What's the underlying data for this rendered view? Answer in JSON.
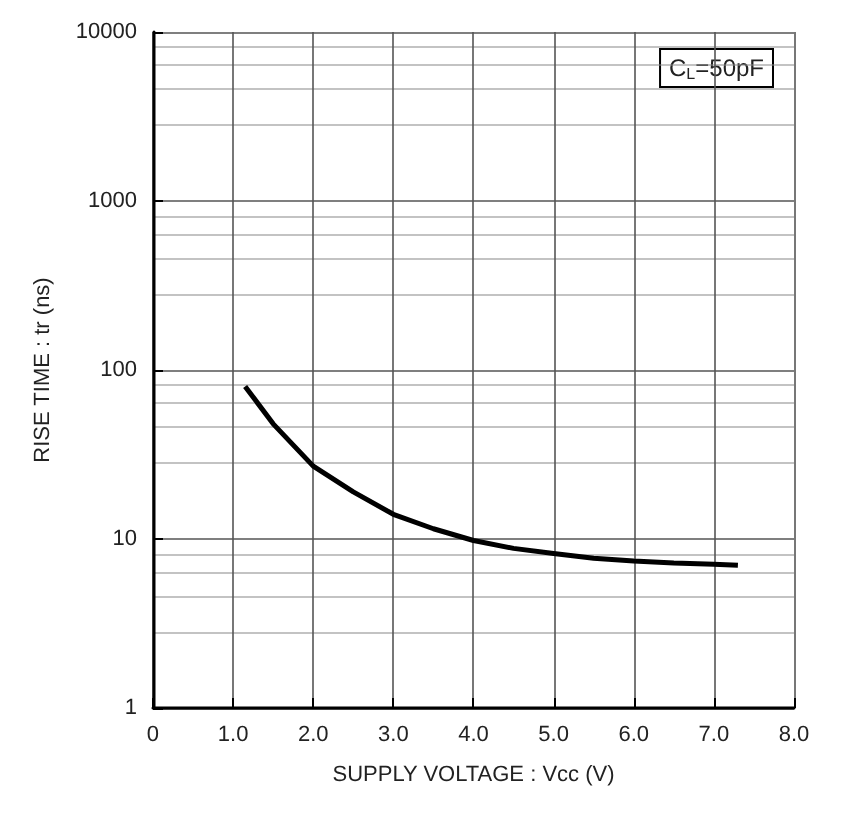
{
  "chart_data": {
    "type": "line",
    "xlabel": "SUPPLY VOLTAGE : Vcc (V)",
    "ylabel": "RISE TIME : tr (ns)",
    "annotations": [
      "C$_{L}$=50pF"
    ],
    "x": [
      1.15,
      1.5,
      2.0,
      2.5,
      3.0,
      3.5,
      4.0,
      4.5,
      5.0,
      5.5,
      6.0,
      6.5,
      7.0,
      7.3
    ],
    "series": [
      {
        "color": "#000000",
        "values": [
          80,
          48,
          27,
          19,
          14,
          11.5,
          9.8,
          8.8,
          8.2,
          7.7,
          7.4,
          7.2,
          7.1,
          7.0
        ]
      }
    ],
    "xlim": [
      0,
      8
    ],
    "xticks": [
      0,
      {
        "value": 1,
        "label": "1.0"
      },
      {
        "value": 2,
        "label": "2.0"
      },
      {
        "value": 3,
        "label": "3.0"
      },
      {
        "value": 4,
        "label": "4.0"
      },
      {
        "value": 5,
        "label": "5.0"
      },
      {
        "value": 6,
        "label": "6.0"
      },
      {
        "value": 7,
        "label": "7.0"
      },
      {
        "value": 8,
        "label": "8.0"
      }
    ],
    "ylim": [
      1,
      10000
    ],
    "yticks": [
      1,
      10,
      100,
      1000,
      10000
    ],
    "log": "y",
    "grid": true,
    "marker": "none",
    "line_style": "solid"
  }
}
